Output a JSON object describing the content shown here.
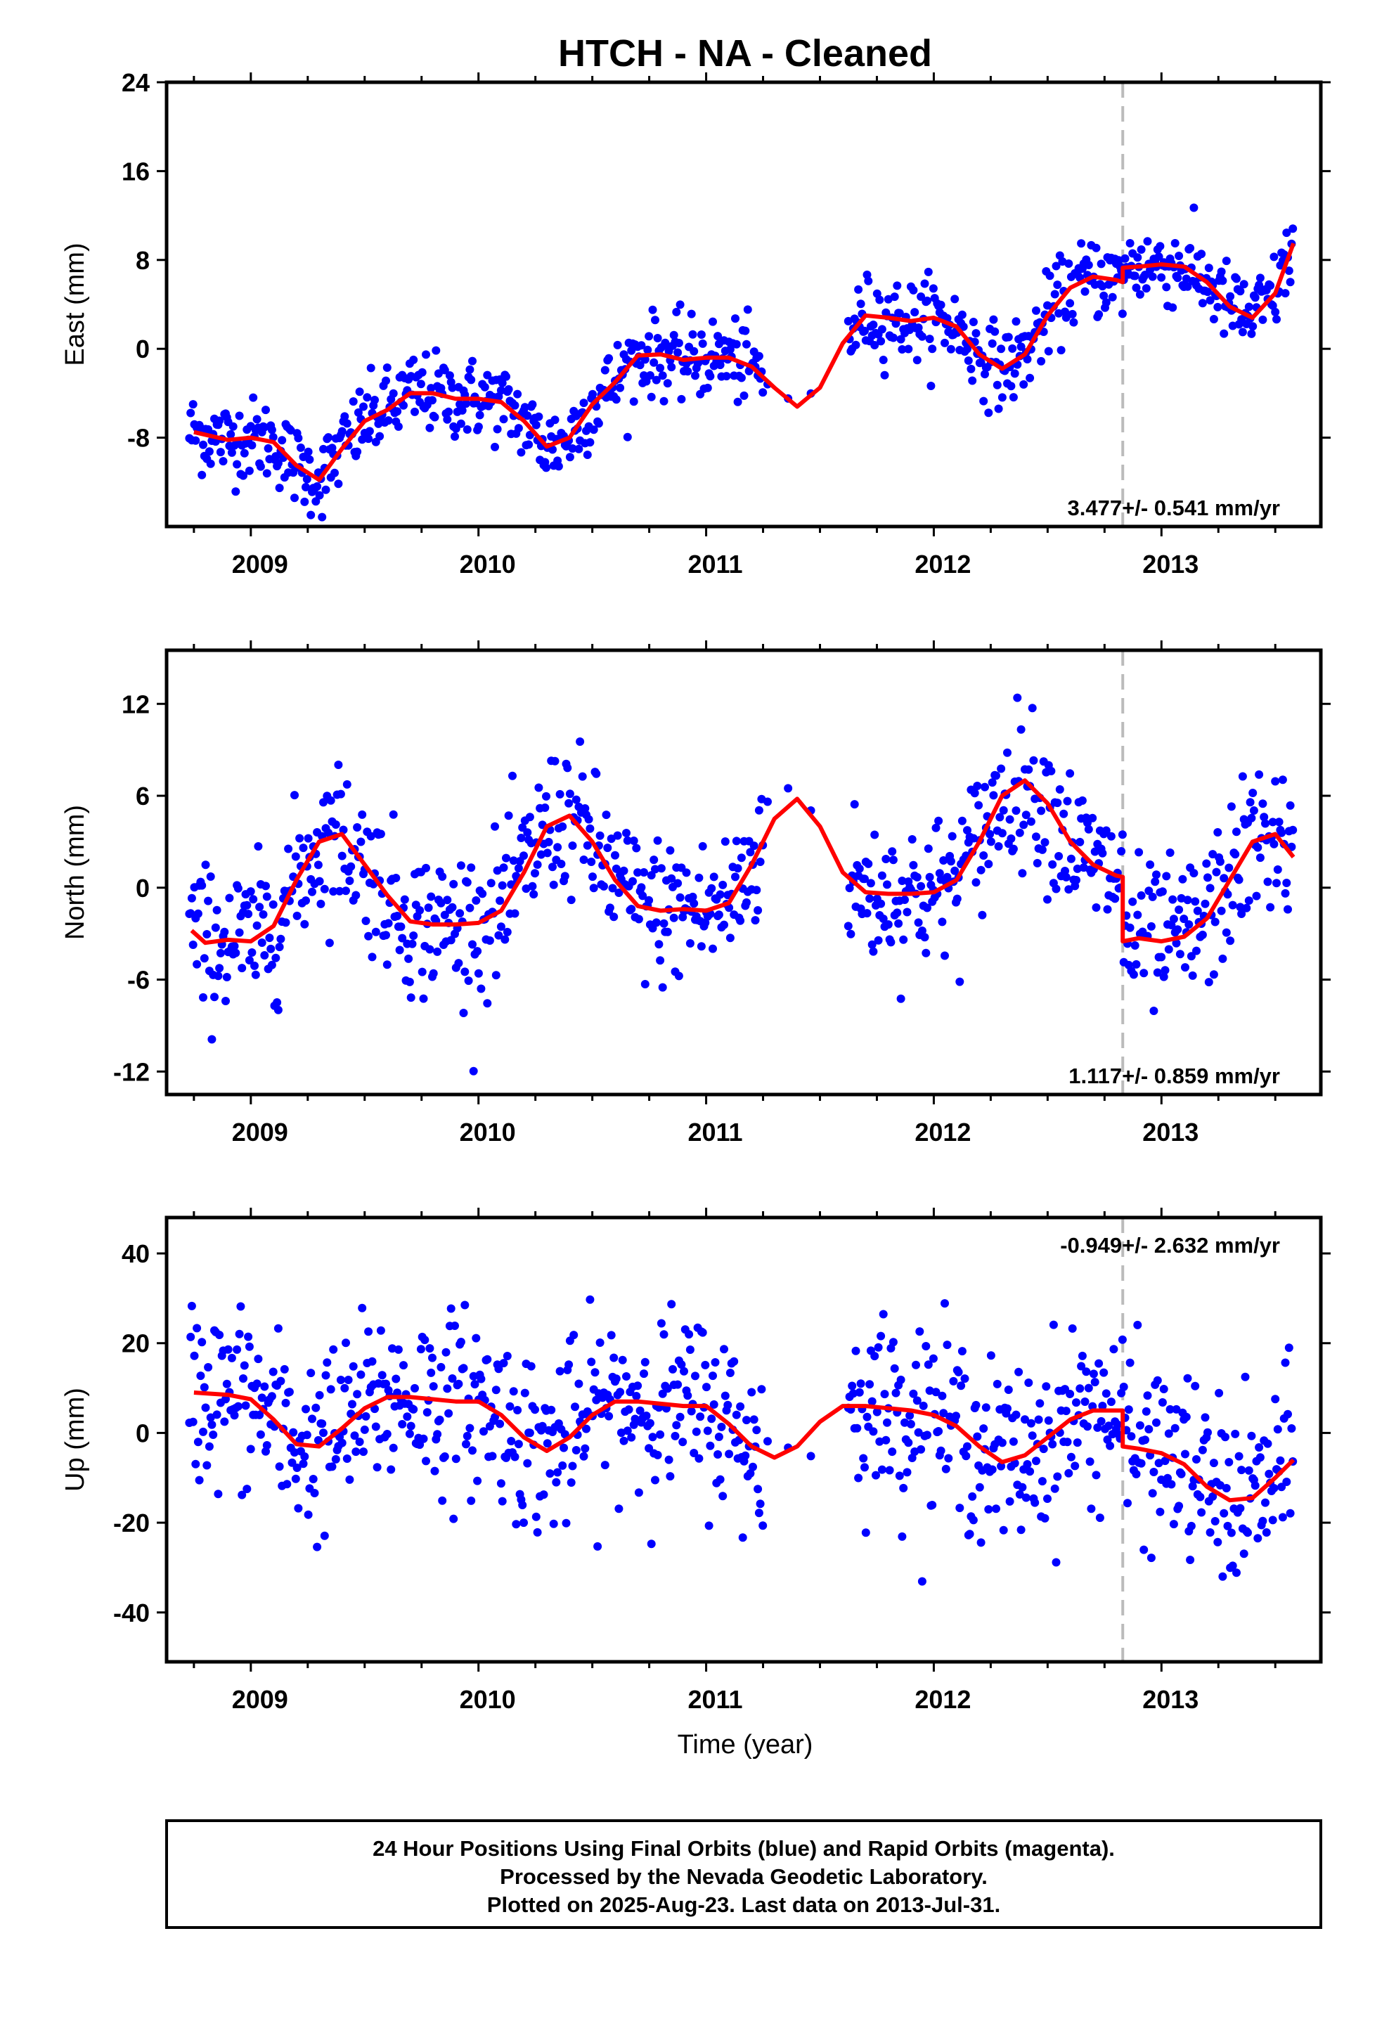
{
  "title": "HTCH  - NA - Cleaned",
  "xlabel": "Time (year)",
  "footer": [
    "24 Hour Positions Using Final Orbits (blue) and Rapid Orbits (magenta).",
    "Processed by the Nevada Geodetic Laboratory.",
    "Plotted on 2025-Aug-23. Last data on 2013-Jul-31."
  ],
  "colors": {
    "points": "#0000ff",
    "model": "#ff0000",
    "offset_line": "#bbbbbb"
  },
  "chart_data": [
    {
      "type": "scatter",
      "ylabel": "East (mm)",
      "xlim": [
        2008.63,
        2013.7
      ],
      "ylim": [
        -16,
        24
      ],
      "yticks": [
        -8,
        0,
        8,
        16,
        24
      ],
      "xticks": [
        2009,
        2010,
        2011,
        2012,
        2013
      ],
      "xtick_labels": [
        "2009",
        "2010",
        "2011",
        "2012",
        "2013"
      ],
      "offset_epoch": 2012.83,
      "rate_label": "3.477+/- 0.541 mm/yr",
      "rate_position": "bottom-right",
      "model": {
        "x": [
          2008.75,
          2008.9,
          2009.0,
          2009.1,
          2009.2,
          2009.3,
          2009.4,
          2009.5,
          2009.6,
          2009.7,
          2009.8,
          2009.9,
          2010.0,
          2010.1,
          2010.2,
          2010.3,
          2010.4,
          2010.5,
          2010.6,
          2010.7,
          2010.8,
          2010.9,
          2011.0,
          2011.1,
          2011.2,
          2011.3,
          2011.4,
          2011.5,
          2011.6,
          2011.7,
          2011.8,
          2011.9,
          2012.0,
          2012.1,
          2012.2,
          2012.3,
          2012.4,
          2012.5,
          2012.6,
          2012.7,
          2012.8,
          2012.83,
          2012.83,
          2012.9,
          2013.0,
          2013.1,
          2013.2,
          2013.3,
          2013.4,
          2013.5,
          2013.58
        ],
        "y": [
          -7.5,
          -8.2,
          -8.0,
          -8.4,
          -10.5,
          -11.8,
          -9.0,
          -6.5,
          -5.5,
          -4.0,
          -4.0,
          -4.5,
          -4.5,
          -4.8,
          -6.5,
          -8.8,
          -8.0,
          -5.0,
          -3.0,
          -0.6,
          -0.5,
          -1.0,
          -0.8,
          -0.8,
          -1.6,
          -3.5,
          -5.2,
          -3.5,
          0.5,
          3.0,
          2.8,
          2.5,
          2.8,
          2.0,
          -0.5,
          -1.8,
          -0.5,
          3.0,
          5.5,
          6.5,
          6.2,
          6.0,
          7.3,
          7.4,
          7.6,
          7.4,
          6.0,
          3.8,
          2.8,
          5.0,
          9.5
        ]
      },
      "point_model": {
        "segments": [
          [
            2008.73,
            2009.42,
            -7.5,
            -8.2,
            -8.0,
            -8.4,
            -10.5,
            -11.8,
            -9.0
          ],
          [
            2009.42,
            2011.25
          ],
          [
            2011.6,
            2013.58
          ]
        ],
        "scatter_sd": 1.8
      }
    },
    {
      "type": "scatter",
      "ylabel": "North (mm)",
      "xlim": [
        2008.63,
        2013.7
      ],
      "ylim": [
        -13.5,
        15.5
      ],
      "yticks": [
        -12,
        -6,
        0,
        6,
        12
      ],
      "xticks": [
        2009,
        2010,
        2011,
        2012,
        2013
      ],
      "xtick_labels": [
        "2009",
        "2010",
        "2011",
        "2012",
        "2013"
      ],
      "offset_epoch": 2012.83,
      "rate_label": "1.117+/- 0.859 mm/yr",
      "rate_position": "bottom-right",
      "model": {
        "x": [
          2008.74,
          2008.8,
          2008.9,
          2009.0,
          2009.1,
          2009.2,
          2009.3,
          2009.4,
          2009.5,
          2009.6,
          2009.7,
          2009.8,
          2009.9,
          2010.0,
          2010.1,
          2010.2,
          2010.3,
          2010.4,
          2010.5,
          2010.6,
          2010.7,
          2010.8,
          2010.9,
          2011.0,
          2011.1,
          2011.2,
          2011.3,
          2011.4,
          2011.5,
          2011.6,
          2011.7,
          2011.8,
          2011.9,
          2012.0,
          2012.1,
          2012.2,
          2012.3,
          2012.4,
          2012.5,
          2012.6,
          2012.7,
          2012.8,
          2012.83,
          2012.83,
          2012.9,
          2013.0,
          2013.1,
          2013.2,
          2013.3,
          2013.4,
          2013.5,
          2013.58
        ],
        "y": [
          -2.8,
          -3.6,
          -3.4,
          -3.5,
          -2.5,
          0.5,
          3.0,
          3.5,
          1.5,
          -0.5,
          -2.2,
          -2.4,
          -2.4,
          -2.3,
          -1.5,
          1.0,
          4.0,
          4.7,
          3.0,
          0.5,
          -1.2,
          -1.5,
          -1.4,
          -1.5,
          -1.0,
          1.5,
          4.5,
          5.8,
          4.0,
          1.0,
          -0.3,
          -0.4,
          -0.4,
          -0.3,
          0.5,
          3.0,
          6.0,
          7.0,
          5.5,
          3.0,
          1.5,
          0.8,
          0.7,
          -3.5,
          -3.3,
          -3.5,
          -3.2,
          -2.0,
          0.5,
          3.0,
          3.5,
          2.0
        ]
      },
      "scatter_sd": 2.4
    },
    {
      "type": "scatter",
      "ylabel": "Up (mm)",
      "xlim": [
        2008.63,
        2013.7
      ],
      "ylim": [
        -51,
        48
      ],
      "yticks": [
        -40,
        -20,
        0,
        20,
        40
      ],
      "xticks": [
        2009,
        2010,
        2011,
        2012,
        2013
      ],
      "xtick_labels": [
        "2009",
        "2010",
        "2011",
        "2012",
        "2013"
      ],
      "offset_epoch": 2012.83,
      "rate_label": "-0.949+/- 2.632 mm/yr",
      "rate_position": "top-right",
      "model": {
        "x": [
          2008.75,
          2008.9,
          2009.0,
          2009.1,
          2009.2,
          2009.3,
          2009.4,
          2009.5,
          2009.6,
          2009.7,
          2009.8,
          2009.9,
          2010.0,
          2010.1,
          2010.2,
          2010.3,
          2010.4,
          2010.5,
          2010.6,
          2010.7,
          2010.8,
          2010.9,
          2011.0,
          2011.1,
          2011.2,
          2011.3,
          2011.4,
          2011.5,
          2011.6,
          2011.7,
          2011.8,
          2011.9,
          2012.0,
          2012.1,
          2012.2,
          2012.3,
          2012.4,
          2012.5,
          2012.6,
          2012.7,
          2012.8,
          2012.83,
          2012.83,
          2012.9,
          2013.0,
          2013.1,
          2013.2,
          2013.3,
          2013.4,
          2013.5,
          2013.58
        ],
        "y": [
          9.0,
          8.5,
          7.5,
          3.0,
          -2.5,
          -3.0,
          1.0,
          5.5,
          8.0,
          8.0,
          7.5,
          7.0,
          7.0,
          4.0,
          -1.0,
          -4.0,
          -1.0,
          4.0,
          7.0,
          7.0,
          6.5,
          6.0,
          6.0,
          2.0,
          -3.0,
          -5.5,
          -3.0,
          2.5,
          6.0,
          6.0,
          5.5,
          5.0,
          4.0,
          1.5,
          -3.0,
          -6.5,
          -5.0,
          -1.0,
          3.0,
          5.0,
          5.0,
          5.0,
          -3.0,
          -3.5,
          -4.5,
          -7.0,
          -12.0,
          -15.0,
          -14.5,
          -10.0,
          -6.0
        ]
      },
      "scatter_sd": 10.0
    }
  ]
}
